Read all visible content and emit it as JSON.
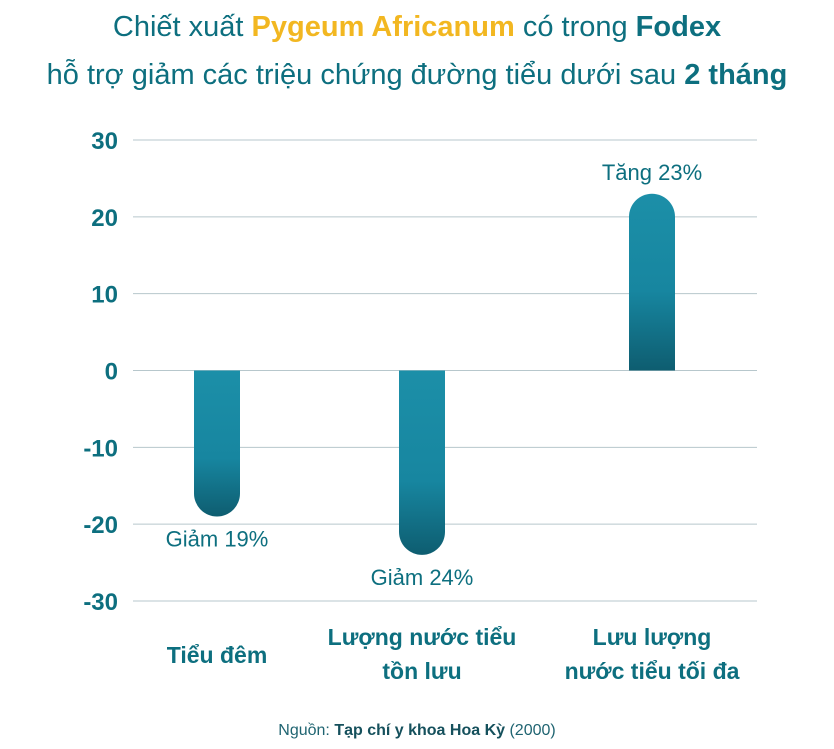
{
  "title": {
    "line1_prefix": "Chiết xuất ",
    "line1_highlight": "Pygeum Africanum",
    "line1_middle": " có trong ",
    "line1_brand": "Fodex",
    "line2_prefix": "hỗ trợ giảm các triệu chứng đường tiểu dưới sau ",
    "line2_bold": "2 tháng"
  },
  "chart_data": {
    "type": "bar",
    "categories": [
      [
        "Tiểu đêm"
      ],
      [
        "Lượng nước tiểu",
        "tồn lưu"
      ],
      [
        "Lưu lượng",
        "nước tiểu tối đa"
      ]
    ],
    "values": [
      -19,
      -24,
      23
    ],
    "data_labels": [
      "Giảm 19%",
      "Giảm 24%",
      "Tăng 23%"
    ],
    "ylim": [
      -30,
      30
    ],
    "yticks": [
      30,
      20,
      10,
      0,
      -10,
      -20,
      -30
    ],
    "grid": true,
    "colors": {
      "bar": "#1c8fa8",
      "bar_dark": "#0e5d70",
      "axis_text": "#0d6f7f",
      "grid": "#b7c7cc"
    }
  },
  "footer": {
    "prefix": "Nguồn: ",
    "source": "Tạp chí y khoa Hoa Kỳ",
    "suffix": " (2000)"
  }
}
